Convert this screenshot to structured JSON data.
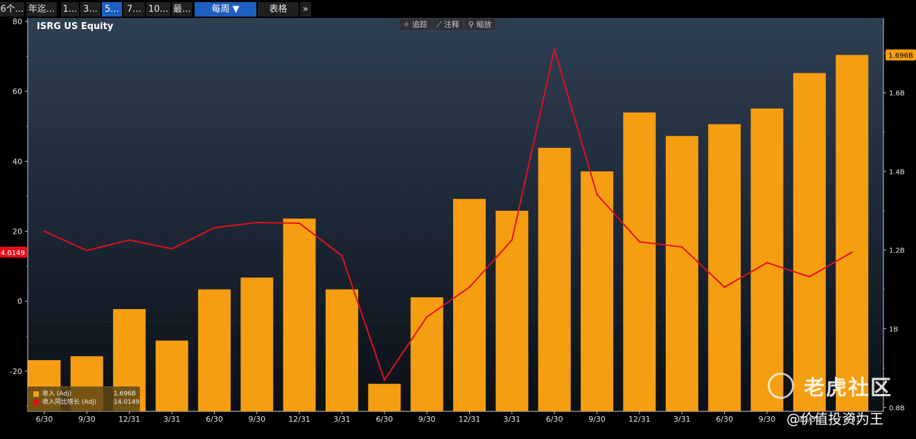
{
  "toolbar": {
    "buttons": [
      {
        "label": "6个..."
      },
      {
        "label": "年迄..."
      },
      {
        "label": "1..."
      },
      {
        "label": "3..."
      },
      {
        "label": "5...",
        "active": true
      },
      {
        "label": "7..."
      },
      {
        "label": "10..."
      },
      {
        "label": "最..."
      },
      {
        "label": "每周 ▼",
        "active": true
      },
      {
        "label": "表格"
      },
      {
        "label": "»"
      }
    ]
  },
  "chart_tools": [
    {
      "label": "✧ 追踪",
      "icon": "crosshair-icon"
    },
    {
      "label": "⟋ 注释",
      "icon": "pencil-icon"
    },
    {
      "label": "⚲ 缩放",
      "icon": "magnifier-icon"
    }
  ],
  "chart_data": {
    "type": "bar",
    "title": "ISRG US Equity",
    "categories": [
      "6/30",
      "9/30",
      "12/31",
      "3/31",
      "6/30",
      "9/30",
      "12/31",
      "3/31",
      "6/30",
      "9/30",
      "12/31",
      "3/31",
      "6/30",
      "9/30",
      "12/31",
      "3/31",
      "6/30",
      "9/30",
      "12/31",
      "3/31"
    ],
    "series": [
      {
        "name": "收入 (Adj)",
        "axis": "right",
        "type": "bar",
        "color": "#f59e12",
        "values": [
          0.92,
          0.93,
          1.05,
          0.97,
          1.1,
          1.13,
          1.28,
          1.1,
          0.86,
          1.08,
          1.33,
          1.3,
          1.46,
          1.4,
          1.55,
          1.49,
          1.52,
          1.56,
          1.65,
          1.696
        ],
        "last_label": "1.696B"
      },
      {
        "name": "收入同比增长 (Adj)",
        "axis": "left",
        "type": "line",
        "color": "#e0111b",
        "values": [
          20,
          14.5,
          17.5,
          15,
          21,
          22.5,
          22.3,
          13,
          -22.5,
          -4.5,
          4,
          17.5,
          72,
          30.5,
          17,
          15.5,
          4,
          11,
          7,
          14.0149
        ],
        "last_label": "14.0149"
      }
    ],
    "left_axis": {
      "ylim": [
        -31.5,
        81
      ],
      "ticks": [
        80,
        60,
        40,
        20,
        0,
        -20
      ]
    },
    "right_axis": {
      "ylim": [
        0.79,
        1.79
      ],
      "ticks": [
        1.6,
        1.4,
        1.2,
        1.0,
        0.8
      ],
      "tick_labels": [
        "1.6B",
        "1.4B",
        "1.2B",
        "1B",
        "0.8B"
      ]
    },
    "legend": [
      {
        "name": "收入 (Adj)",
        "value": "1.696B",
        "color": "#f59e12"
      },
      {
        "name": "收入同比增长 (Adj)",
        "value": "14.0149",
        "color": "#e0111b"
      }
    ],
    "legend_position": "bottom-left",
    "grid": false
  },
  "watermark": {
    "brand": "老虎社区",
    "user": "@价值投资为王"
  }
}
